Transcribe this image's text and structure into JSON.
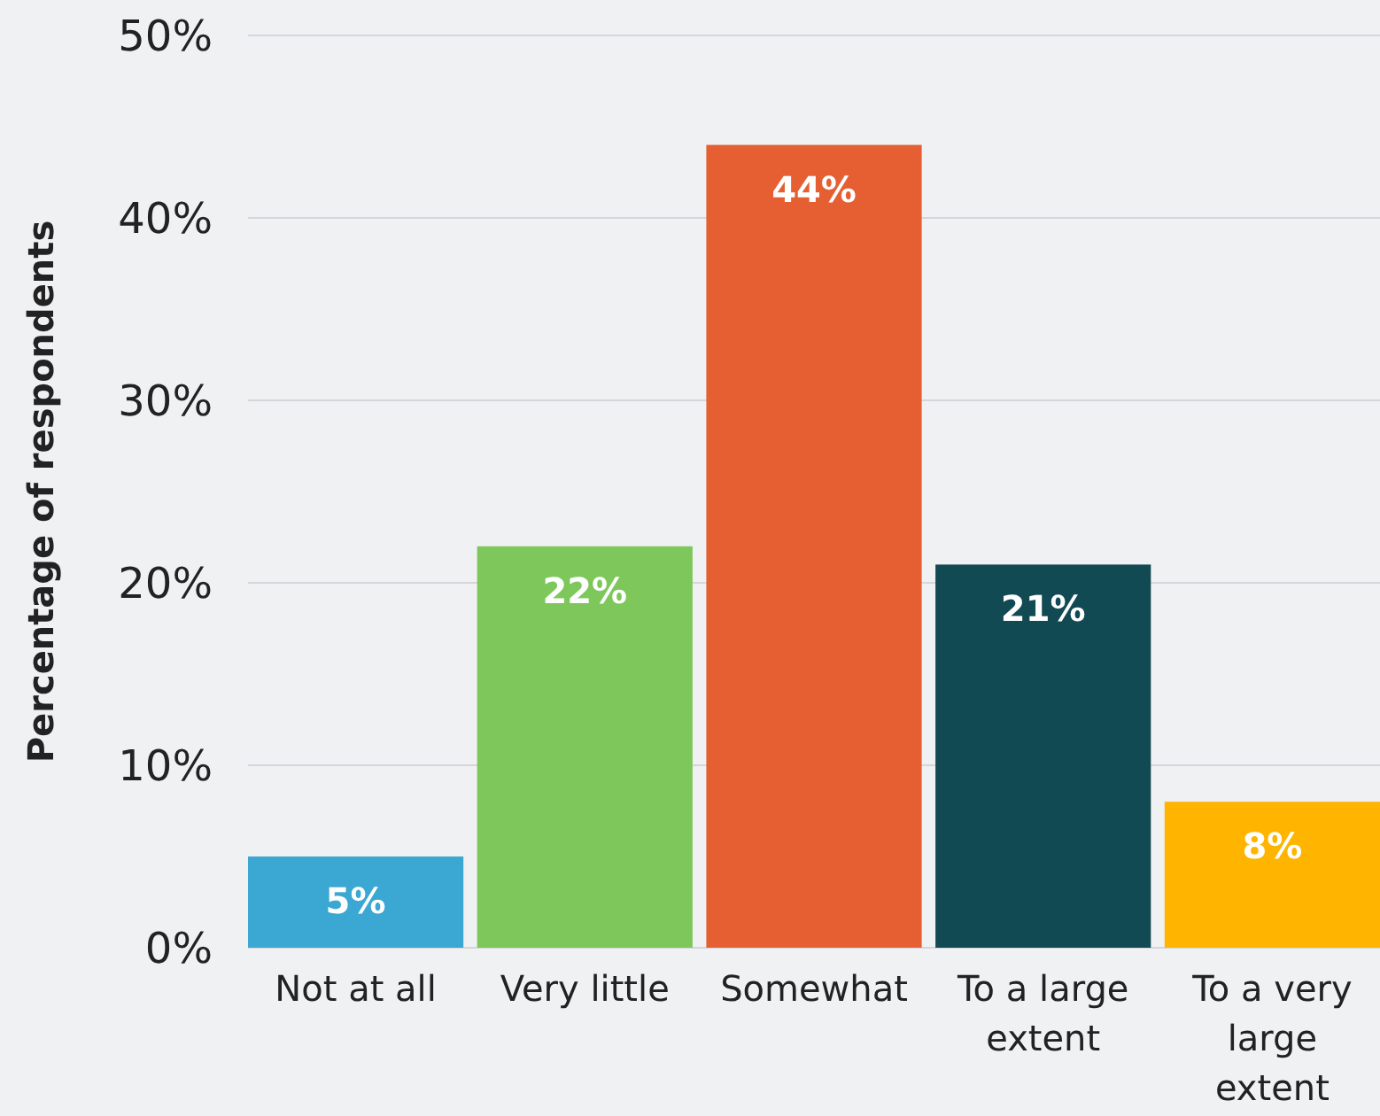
{
  "chart_data": {
    "type": "bar",
    "ylabel": "Percentage of respondents",
    "categories": [
      "Not at all",
      "Very little",
      "Somewhat",
      "To a large extent",
      "To a very large extent"
    ],
    "values": [
      5,
      22,
      44,
      21,
      8
    ],
    "colors": [
      "#3ba7d3",
      "#7ec75a",
      "#e55f32",
      "#124a53",
      "#ffb400"
    ],
    "value_labels": [
      "5%",
      "22%",
      "44%",
      "21%",
      "8%"
    ],
    "ylim": [
      0,
      50
    ],
    "yticks": [
      {
        "value": 0,
        "label": "0%"
      },
      {
        "value": 10,
        "label": "10%"
      },
      {
        "value": 20,
        "label": "20%"
      },
      {
        "value": 30,
        "label": "30%"
      },
      {
        "value": 40,
        "label": "40%"
      },
      {
        "value": 50,
        "label": "50%"
      }
    ],
    "grid": "y"
  }
}
